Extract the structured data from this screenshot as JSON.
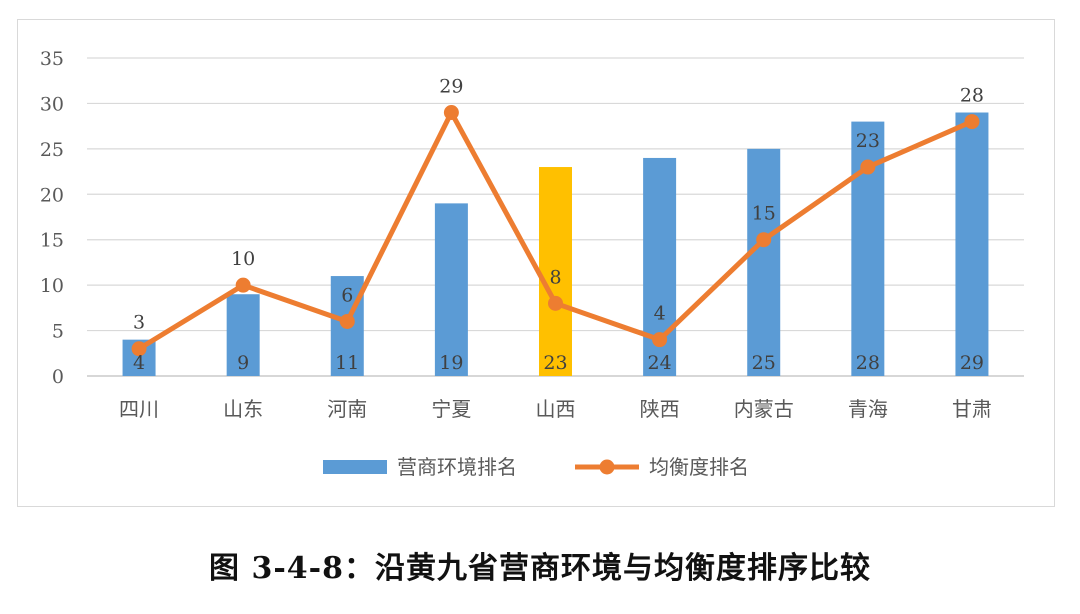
{
  "chart_data": {
    "type": "bar+line",
    "categories": [
      "四川",
      "山东",
      "河南",
      "宁夏",
      "山西",
      "陕西",
      "内蒙古",
      "青海",
      "甘肃"
    ],
    "series": [
      {
        "name": "营商环境排名",
        "type": "bar",
        "values": [
          4,
          9,
          11,
          19,
          23,
          24,
          25,
          28,
          29
        ],
        "color": "#5b9bd5",
        "highlight": {
          "category": "山西",
          "color": "#ffc000"
        }
      },
      {
        "name": "均衡度排名",
        "type": "line",
        "values": [
          3,
          10,
          6,
          29,
          8,
          4,
          15,
          23,
          28
        ],
        "color": "#ed7d31"
      }
    ],
    "ylim": [
      0,
      35
    ],
    "yticks": [
      0,
      5,
      10,
      15,
      20,
      25,
      30,
      35
    ],
    "grid": true,
    "legend_position": "bottom"
  },
  "caption": "图 3-4-8：沿黄九省营商环境与均衡度排序比较"
}
